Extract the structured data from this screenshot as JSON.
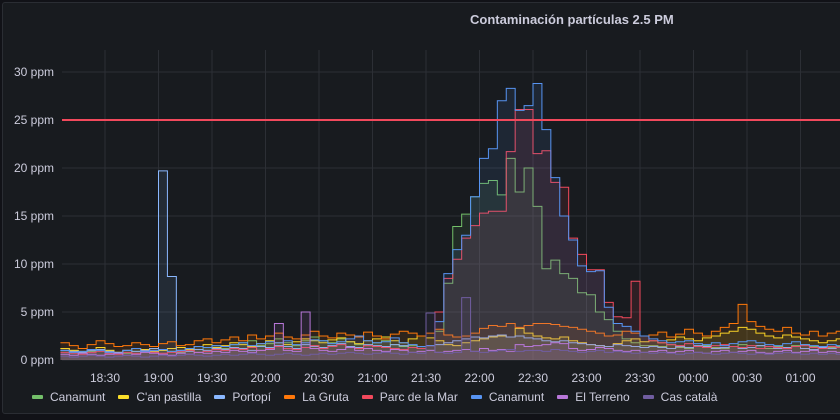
{
  "chart_data": {
    "type": "line",
    "title": "Contaminación partículas 2.5 PM",
    "xlabel": "",
    "ylabel": "",
    "x_start": "18:05",
    "x_step_minutes": 5,
    "ylim": [
      0,
      30
    ],
    "y_ticks": [
      "0 ppm",
      "5 ppm",
      "10 ppm",
      "15 ppm",
      "20 ppm",
      "25 ppm",
      "30 ppm"
    ],
    "y_tick_values": [
      0,
      5,
      10,
      15,
      20,
      25,
      30
    ],
    "x_ticks": [
      "18:30",
      "19:00",
      "19:30",
      "20:00",
      "20:30",
      "21:00",
      "21:30",
      "22:00",
      "22:30",
      "23:00",
      "23:30",
      "00:00",
      "00:30",
      "01:00"
    ],
    "x_tick_minutes": [
      30,
      60,
      90,
      120,
      150,
      180,
      210,
      240,
      270,
      300,
      330,
      360,
      390,
      420
    ],
    "grid": true,
    "legend_position": "bottom",
    "threshold": {
      "value": 25,
      "color": "#f2495c"
    },
    "series": [
      {
        "name": "Canamunt",
        "color": "#73bf69",
        "values": [
          1.2,
          1,
          0.8,
          0.9,
          1.1,
          1,
          0.8,
          0.7,
          0.9,
          1,
          1.2,
          1,
          0.9,
          0.8,
          1,
          1.1,
          1.3,
          1.5,
          1.2,
          1.6,
          1.8,
          2,
          1.5,
          1.7,
          2.2,
          1.8,
          1.5,
          2,
          2.4,
          2,
          1.8,
          2.2,
          1.9,
          1.6,
          1.5,
          1.8,
          2,
          1.6,
          1.4,
          1.5,
          1.2,
          1,
          3,
          8,
          13.9,
          15.2,
          17,
          18.4,
          18.7,
          17.2,
          21,
          17.5,
          20,
          16,
          9.5,
          10.4,
          9,
          8.5,
          7,
          6.8,
          5,
          4.2,
          3,
          2.2,
          1.8,
          1.5,
          1.5,
          1.4,
          1.6,
          1.3,
          1.2,
          1.4,
          1.5,
          1.3,
          1.2,
          1.4,
          1.6,
          1.3,
          1.5,
          1.2,
          1.4,
          1.3,
          1.5,
          1.6,
          1.4,
          1.2,
          1.3,
          1.4
        ]
      },
      {
        "name": "C'an pastilla",
        "color": "#fade2a",
        "values": [
          1.2,
          1,
          0.9,
          1.1,
          1.3,
          1,
          0.8,
          1,
          1.2,
          1.1,
          0.9,
          1,
          1.2,
          1.3,
          1.1,
          1.4,
          1.6,
          1.3,
          1.5,
          1.8,
          1.6,
          1.4,
          1.7,
          2,
          1.8,
          1.6,
          1.9,
          2.2,
          2,
          1.8,
          2.1,
          2.3,
          1.9,
          1.7,
          2,
          2.2,
          2.4,
          2,
          1.8,
          2.2,
          2.5,
          2.3,
          2,
          1.6,
          1.5,
          1.8,
          2,
          2.2,
          2.4,
          2.5,
          2.4,
          3.3,
          2.8,
          2.5,
          2.3,
          2.2,
          2.4,
          2,
          1.8,
          1.6,
          1.5,
          1.4,
          1.7,
          2,
          2.2,
          1.9,
          2,
          1.8,
          2.1,
          2.4,
          2.2,
          2,
          2.3,
          2.5,
          2.8,
          3,
          3.4,
          3.2,
          2.8,
          2.5,
          2.3,
          2.6,
          2.4,
          2.2,
          2,
          1.8,
          2,
          2.2
        ]
      },
      {
        "name": "Portopí",
        "color": "#8ab8ff",
        "values": [
          1,
          0.9,
          0.8,
          1,
          1.1,
          0.9,
          0.8,
          1,
          0.9,
          1,
          1.2,
          19.7,
          8.7,
          1,
          0.9,
          1.1,
          1,
          1.2,
          1.1,
          1.3,
          1.2,
          1,
          1.4,
          1.3,
          1.5,
          1.4,
          1.2,
          1.6,
          1.4,
          1.3,
          1.5,
          1.7,
          1.4,
          1.3,
          1.6,
          1.5,
          1.4,
          1.6,
          1.5,
          1.3,
          1.4,
          1.5,
          1.6,
          1.8,
          2,
          2.2,
          2.4,
          2.3,
          2.5,
          2.6,
          2.4,
          2.5,
          2.3,
          2.2,
          2,
          1.9,
          2,
          1.8,
          1.7,
          1.6,
          1.5,
          1.4,
          1.6,
          1.5,
          1.4,
          1.3,
          1.4,
          1.3,
          1.2,
          1.4,
          1.3,
          1.5,
          1.4,
          1.2,
          1.3,
          1.4,
          1.2,
          1.3,
          1.5,
          1.4,
          1.2,
          1.3,
          1.4,
          1.2,
          1.1,
          1.3,
          1.2,
          1.3
        ]
      },
      {
        "name": "La Gruta",
        "color": "#ff780a",
        "values": [
          1.8,
          1.5,
          1.2,
          1.6,
          2,
          1.7,
          1.4,
          1.5,
          1.8,
          1.6,
          1.4,
          1.7,
          1.9,
          1.5,
          1.6,
          2,
          2.2,
          1.8,
          2.1,
          2.4,
          2,
          2.6,
          2.2,
          2.5,
          2.8,
          2.4,
          2.2,
          2.6,
          3,
          2.5,
          2.3,
          2.8,
          2.6,
          2.4,
          2.9,
          2.5,
          2.2,
          2.7,
          3,
          2.8,
          2.5,
          2.8,
          3.2,
          2.6,
          2.4,
          2.5,
          2.8,
          3.3,
          3.6,
          3.5,
          3.8,
          3.4,
          3.6,
          3.8,
          3.8,
          3.7,
          3.5,
          3.4,
          3.2,
          3,
          2.8,
          2.5,
          2.6,
          3,
          2.8,
          2.5,
          2.6,
          2.9,
          2.4,
          2.7,
          3.2,
          2.8,
          2.5,
          3,
          3.4,
          3.8,
          5.8,
          4,
          3.5,
          3.2,
          3,
          3.4,
          2.8,
          2.6,
          3,
          2.5,
          2.8,
          3
        ]
      },
      {
        "name": "Parc de la Mar",
        "color": "#f2495c",
        "values": [
          0.8,
          0.7,
          0.6,
          0.8,
          0.9,
          0.7,
          0.6,
          0.8,
          0.7,
          0.9,
          0.8,
          0.7,
          0.8,
          0.9,
          1,
          0.8,
          0.9,
          1.1,
          1,
          1.2,
          1.1,
          1.3,
          1,
          1.2,
          1.4,
          1.2,
          1.1,
          1.3,
          1.5,
          1.2,
          1.4,
          1.6,
          1.3,
          1.2,
          1.5,
          1.4,
          1.3,
          1.2,
          1.1,
          1.3,
          1.2,
          1.5,
          5,
          8.5,
          10.5,
          12.7,
          14,
          15.3,
          15.5,
          15.5,
          21.7,
          26.1,
          26.1,
          21.5,
          21.8,
          18.5,
          18,
          12.7,
          11,
          9.4,
          9.4,
          6,
          4.5,
          4.4,
          8.2,
          2.5,
          2,
          1.8,
          1.6,
          1.5,
          1.7,
          1.4,
          1.3,
          1.5,
          1.6,
          1.4,
          1.3,
          1.5,
          1.2,
          1.4,
          1.3,
          1.2,
          1.4,
          1.5,
          1.3,
          1.2,
          1.4,
          1.3
        ]
      },
      {
        "name": "Canamunt",
        "color": "#5794f2",
        "values": [
          1,
          0.8,
          0.9,
          1.1,
          1,
          0.8,
          0.7,
          1,
          1.2,
          0.9,
          1,
          1.1,
          0.9,
          1,
          1.2,
          1.4,
          1.3,
          1.5,
          1.4,
          1.6,
          1.8,
          1.5,
          1.7,
          1.9,
          1.8,
          2,
          1.6,
          1.8,
          2.1,
          2,
          1.7,
          1.9,
          2.2,
          2.5,
          2,
          1.8,
          1.9,
          2.3,
          1.8,
          1.6,
          1.4,
          1.5,
          4,
          9,
          11.5,
          13,
          17,
          21,
          22,
          27,
          28.3,
          26,
          26.5,
          28.8,
          24,
          19,
          15,
          12.5,
          9.8,
          9.2,
          9.3,
          5.5,
          3.8,
          3.5,
          3,
          2.5,
          2.2,
          2,
          1.8,
          1.9,
          2,
          1.7,
          1.6,
          1.8,
          1.5,
          1.7,
          1.9,
          2,
          1.8,
          1.6,
          1.5,
          1.7,
          1.9,
          1.6,
          1.5,
          1.4,
          1.6,
          1.5
        ]
      },
      {
        "name": "El Terreno",
        "color": "#b877d9",
        "values": [
          0.6,
          0.5,
          0.7,
          0.6,
          0.5,
          0.6,
          0.7,
          0.5,
          0.6,
          0.8,
          0.7,
          0.6,
          0.5,
          0.7,
          0.6,
          0.8,
          0.7,
          0.9,
          0.8,
          1,
          0.9,
          0.8,
          1,
          1.1,
          3.8,
          1,
          0.9,
          5,
          1.2,
          1,
          0.9,
          1.1,
          1.3,
          1,
          1.2,
          1,
          0.9,
          1.1,
          1,
          0.8,
          0.9,
          1,
          0.8,
          0.9,
          1,
          1.1,
          0.9,
          1.2,
          1,
          1.1,
          0.9,
          1.6,
          1.4,
          1.5,
          1.6,
          1.8,
          1.7,
          1.2,
          1,
          1.1,
          1.3,
          1.2,
          1,
          0.9,
          1,
          0.8,
          0.9,
          1,
          0.8,
          0.9,
          1,
          0.8,
          0.7,
          0.9,
          1,
          0.8,
          0.9,
          1,
          0.8,
          0.7,
          0.9,
          1,
          0.8,
          0.9,
          1,
          0.8,
          0.9,
          0.8
        ]
      },
      {
        "name": "Cas català",
        "color": "#705da0",
        "values": [
          0.4,
          0.3,
          0.4,
          0.5,
          0.4,
          0.3,
          0.4,
          0.5,
          0.4,
          0.3,
          0.4,
          0.5,
          0.4,
          0.5,
          0.6,
          0.5,
          0.4,
          0.5,
          0.6,
          0.5,
          0.6,
          0.7,
          0.6,
          0.5,
          0.6,
          0.7,
          0.6,
          0.5,
          0.6,
          0.7,
          0.6,
          0.7,
          0.8,
          0.7,
          0.6,
          0.7,
          0.8,
          0.7,
          0.6,
          0.8,
          0.7,
          4.9,
          0.8,
          0.7,
          0.8,
          6.5,
          0.9,
          0.8,
          0.9,
          1,
          1.1,
          0.9,
          1,
          1,
          0.9,
          1.1,
          1,
          0.9,
          0.8,
          0.9,
          1,
          0.8,
          0.9,
          0.8,
          0.7,
          0.8,
          0.7,
          0.8,
          0.7,
          0.6,
          0.7,
          0.8,
          0.7,
          0.6,
          0.7,
          0.8,
          0.7,
          0.6,
          0.7,
          0.6,
          0.7,
          0.8,
          0.7,
          0.6,
          0.7,
          0.6,
          0.7,
          0.6
        ]
      }
    ]
  }
}
